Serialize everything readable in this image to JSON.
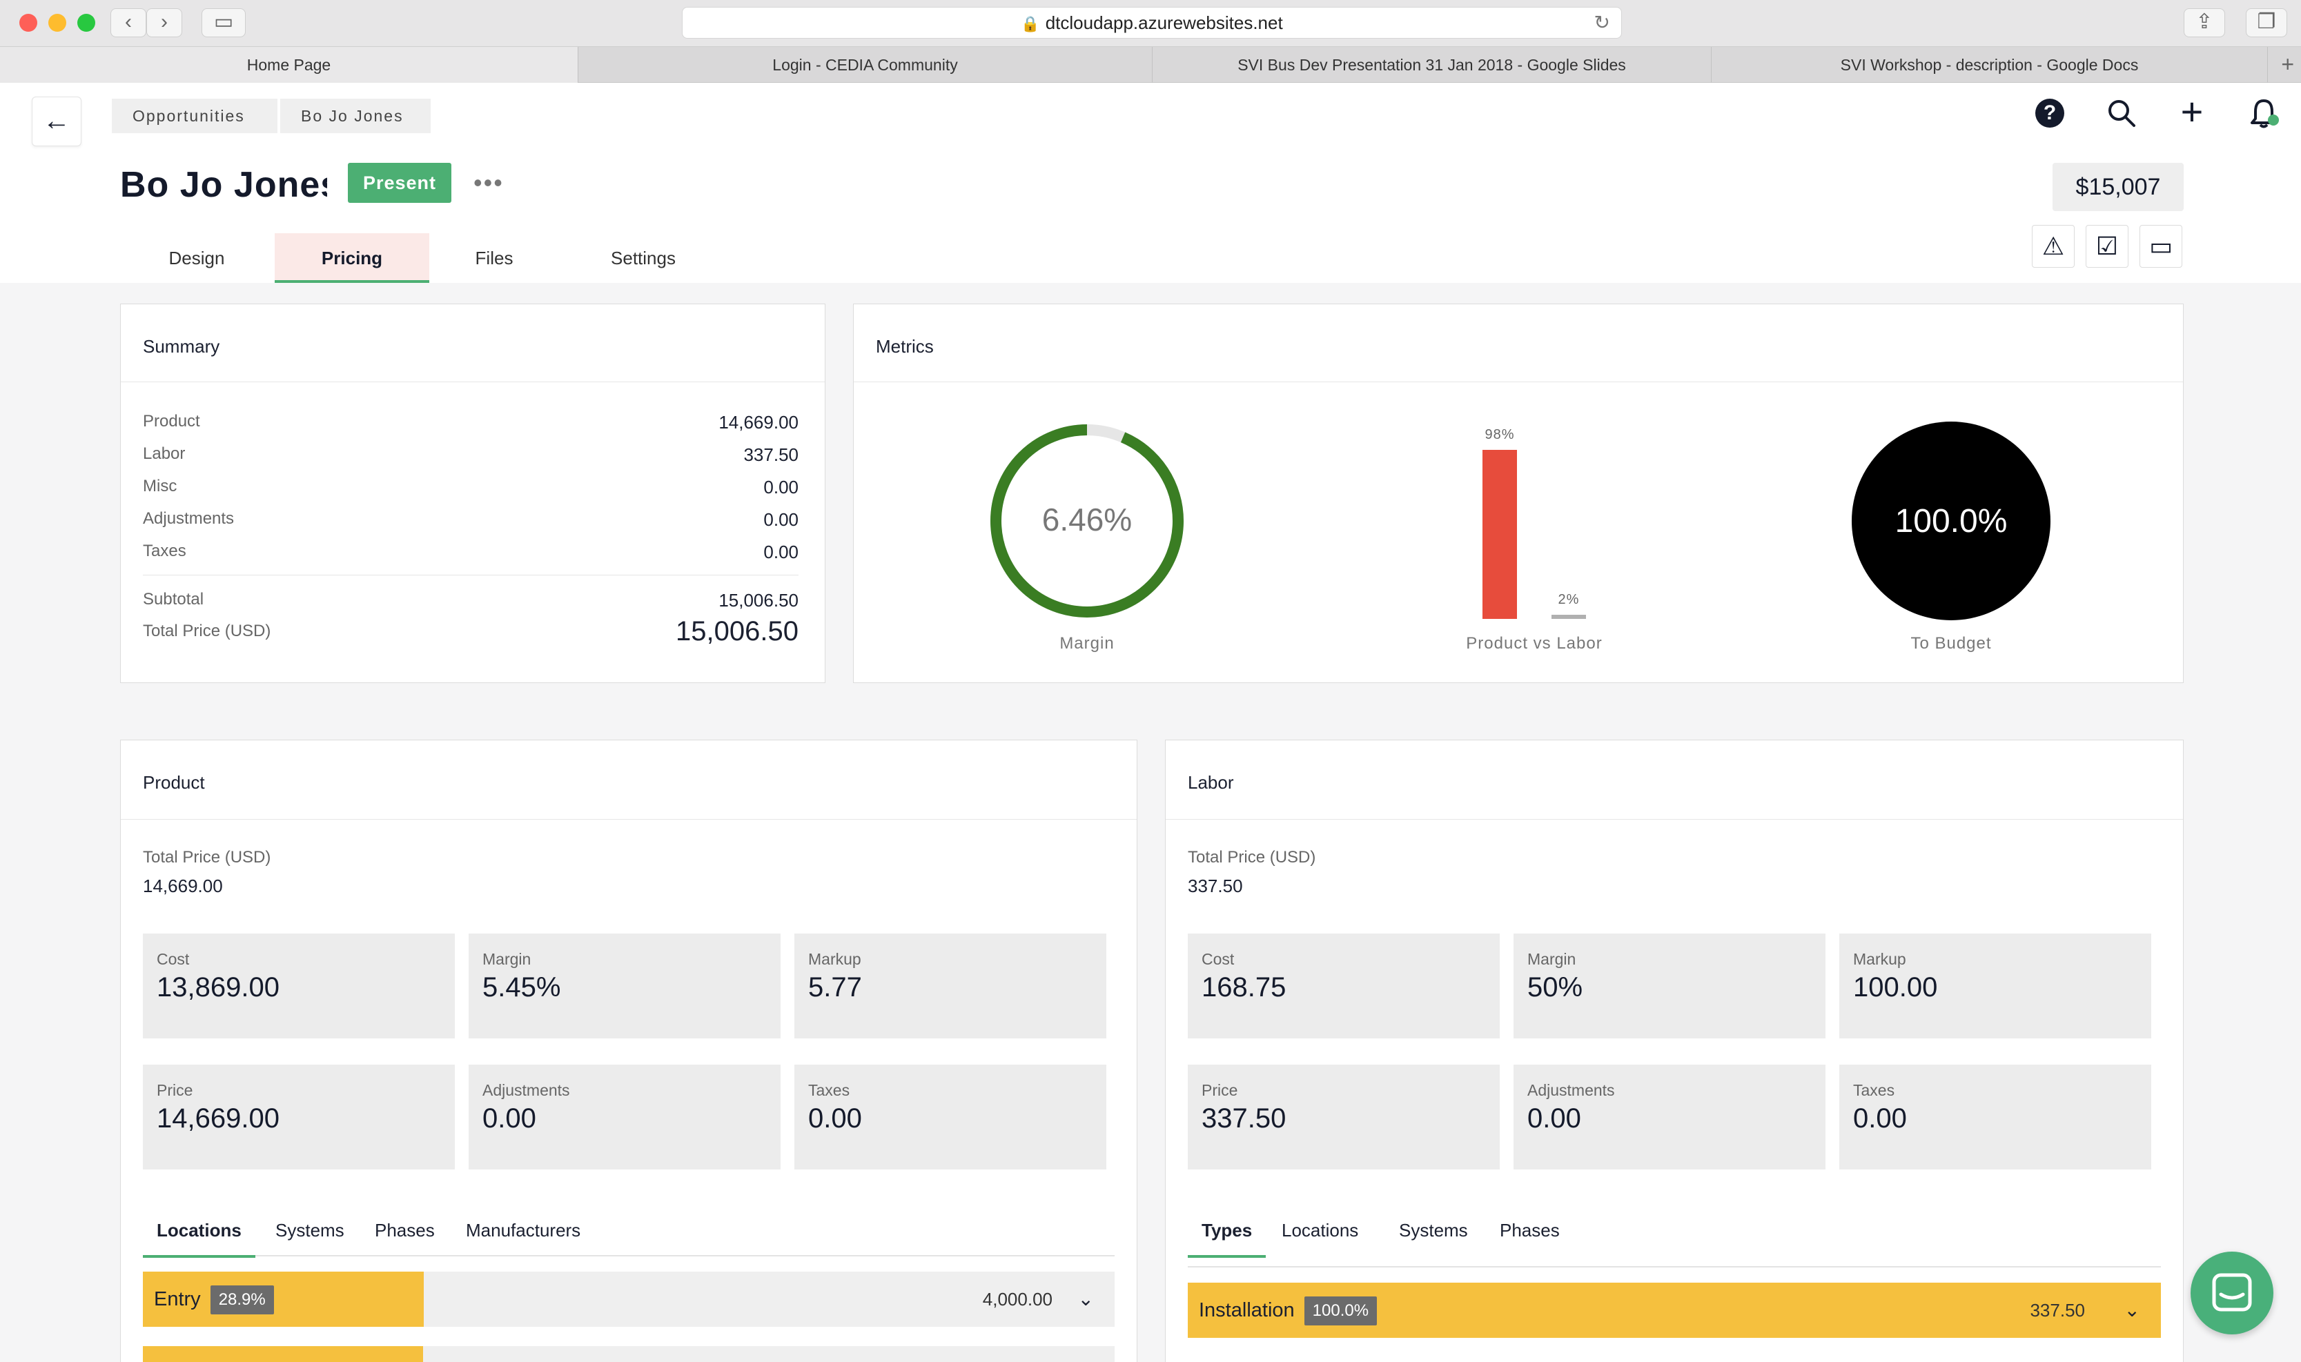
{
  "browser": {
    "url": "dtcloudapp.azurewebsites.net",
    "tabs": [
      {
        "label": "Home Page"
      },
      {
        "label": "Login - CEDIA Community"
      },
      {
        "label": "SVI Bus Dev Presentation 31 Jan 2018 - Google Slides"
      },
      {
        "label": "SVI Workshop - description - Google Docs"
      }
    ]
  },
  "breadcrumb": [
    "Opportunities",
    "Bo Jo Jones"
  ],
  "header": {
    "title": "Bo Jo Jones",
    "status": "Present",
    "total": "$15,007"
  },
  "page_tabs": [
    "Design",
    "Pricing",
    "Files",
    "Settings"
  ],
  "summary": {
    "title": "Summary",
    "rows": [
      {
        "label": "Product",
        "value": "14,669.00"
      },
      {
        "label": "Labor",
        "value": "337.50"
      },
      {
        "label": "Misc",
        "value": "0.00"
      },
      {
        "label": "Adjustments",
        "value": "0.00"
      },
      {
        "label": "Taxes",
        "value": "0.00"
      }
    ],
    "subtotal_label": "Subtotal",
    "subtotal": "15,006.50",
    "total_label": "Total Price (USD)",
    "total": "15,006.50"
  },
  "metrics": {
    "title": "Metrics",
    "margin": {
      "value_text": "6.46%",
      "label": "Margin",
      "fraction": 0.9354
    },
    "product_vs_labor": {
      "product_pct": "98%",
      "labor_pct": "2%",
      "product_value": 98,
      "labor_value": 2,
      "label": "Product vs Labor"
    },
    "budget": {
      "value_text": "100.0%",
      "label": "To Budget"
    }
  },
  "product": {
    "title": "Product",
    "total_label": "Total Price (USD)",
    "total": "14,669.00",
    "tiles": [
      {
        "label": "Cost",
        "value": "13,869.00"
      },
      {
        "label": "Margin",
        "value": "5.45%"
      },
      {
        "label": "Markup",
        "value": "5.77"
      },
      {
        "label": "Price",
        "value": "14,669.00"
      },
      {
        "label": "Adjustments",
        "value": "0.00"
      },
      {
        "label": "Taxes",
        "value": "0.00"
      }
    ],
    "tabs": [
      "Locations",
      "Systems",
      "Phases",
      "Manufacturers"
    ],
    "rows": [
      {
        "name": "Entry",
        "pct": "28.9%",
        "fraction": 0.289,
        "amount": "4,000.00"
      }
    ]
  },
  "labor": {
    "title": "Labor",
    "total_label": "Total Price (USD)",
    "total": "337.50",
    "tiles": [
      {
        "label": "Cost",
        "value": "168.75"
      },
      {
        "label": "Margin",
        "value": "50%"
      },
      {
        "label": "Markup",
        "value": "100.00"
      },
      {
        "label": "Price",
        "value": "337.50"
      },
      {
        "label": "Adjustments",
        "value": "0.00"
      },
      {
        "label": "Taxes",
        "value": "0.00"
      }
    ],
    "tabs": [
      "Types",
      "Locations",
      "Systems",
      "Phases"
    ],
    "rows": [
      {
        "name": "Installation",
        "pct": "100.0%",
        "fraction": 1.0,
        "amount": "337.50"
      }
    ]
  },
  "colors": {
    "accent_green": "#4caf73",
    "margin_ring": "#3a7d23",
    "bar_red": "#e74c3c",
    "bar_yellow": "#f5c03e"
  }
}
